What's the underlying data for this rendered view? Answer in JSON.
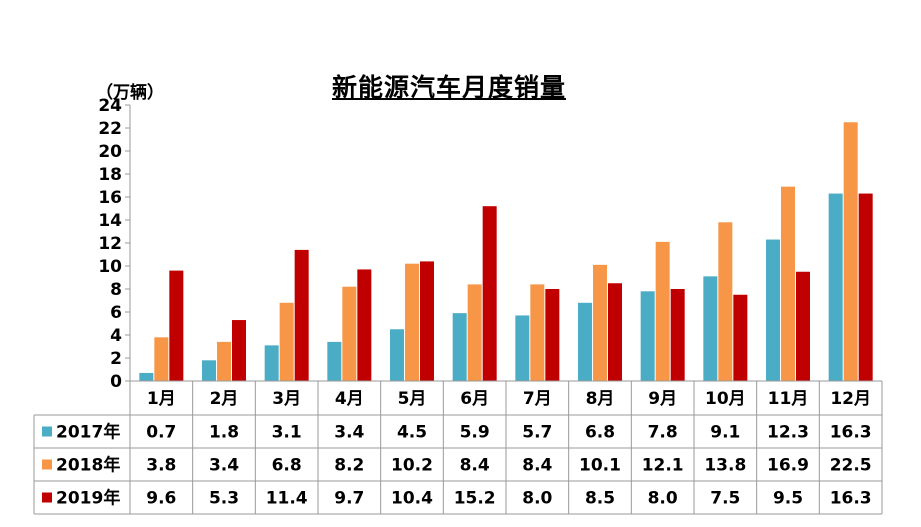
{
  "chart_data": {
    "type": "bar",
    "title": "新能源汽车月度销量",
    "unit": "（万辆）",
    "categories": [
      "1月",
      "2月",
      "3月",
      "4月",
      "5月",
      "6月",
      "7月",
      "8月",
      "9月",
      "10月",
      "11月",
      "12月"
    ],
    "ylim": [
      0,
      24
    ],
    "yticks": [
      0,
      2,
      4,
      6,
      8,
      10,
      12,
      14,
      16,
      18,
      20,
      22,
      24
    ],
    "ytick_labels": [
      "0",
      "2",
      "4",
      "6",
      "8",
      "10",
      "12",
      "14",
      "16",
      "18",
      "20",
      "22",
      "24"
    ],
    "grid": false,
    "legend_placement": "bottom data table",
    "series": [
      {
        "name": "2017年",
        "color": "#4BACC6",
        "values": [
          0.7,
          1.8,
          3.1,
          3.4,
          4.5,
          5.9,
          5.7,
          6.8,
          7.8,
          9.1,
          12.3,
          16.3
        ],
        "labels": [
          "0.7",
          "1.8",
          "3.1",
          "3.4",
          "4.5",
          "5.9",
          "5.7",
          "6.8",
          "7.8",
          "9.1",
          "12.3",
          "16.3"
        ]
      },
      {
        "name": "2018年",
        "color": "#F79646",
        "values": [
          3.8,
          3.4,
          6.8,
          8.2,
          10.2,
          8.4,
          8.4,
          10.1,
          12.1,
          13.8,
          16.9,
          22.5
        ],
        "labels": [
          "3.8",
          "3.4",
          "6.8",
          "8.2",
          "10.2",
          "8.4",
          "8.4",
          "10.1",
          "12.1",
          "13.8",
          "16.9",
          "22.5"
        ]
      },
      {
        "name": "2019年",
        "color": "#C00000",
        "values": [
          9.6,
          5.3,
          11.4,
          9.7,
          10.4,
          15.2,
          8.0,
          8.5,
          8.0,
          7.5,
          9.5,
          16.3
        ],
        "labels": [
          "9.6",
          "5.3",
          "11.4",
          "9.7",
          "10.4",
          "15.2",
          "8.0",
          "8.5",
          "8.0",
          "7.5",
          "9.5",
          "16.3"
        ]
      }
    ]
  }
}
